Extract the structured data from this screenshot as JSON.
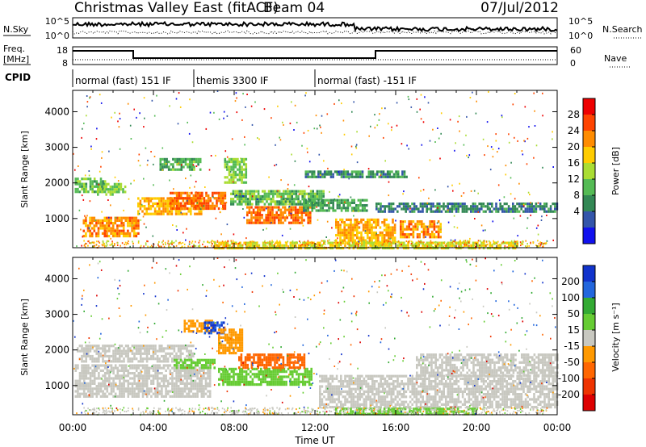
{
  "header": {
    "title": "Christmas Valley East (fitACF)",
    "beam": "Beam 04",
    "date": "07/Jul/2012"
  },
  "top_panels": {
    "nsky_label": "N.Sky",
    "nsearch_label": "N.Search",
    "nsky_ticks": [
      "10^5",
      "10^0"
    ],
    "nsearch_ticks": [
      "10^5",
      "10^0"
    ],
    "freq_label_line1": "Freq.",
    "freq_label_line2": "[MHz]",
    "freq_ticks": [
      "18",
      "8"
    ],
    "nave_label": "Nave",
    "nave_ticks": [
      "60",
      "0"
    ],
    "cpid_label": "CPID"
  },
  "cpid_segments": [
    {
      "label": "normal (fast) 151 IF",
      "start_h": 0,
      "end_h": 6
    },
    {
      "label": "themis 3300 IF",
      "start_h": 6,
      "end_h": 12
    },
    {
      "label": "normal (fast) -151 IF",
      "start_h": 12,
      "end_h": 24
    }
  ],
  "power_colorbar": {
    "title": "Power [dB]",
    "ticks": [
      "28",
      "24",
      "20",
      "16",
      "12",
      "8",
      "4"
    ],
    "colors": [
      "#ee0000",
      "#ff4400",
      "#ff8c00",
      "#ffcc00",
      "#aadd33",
      "#55bb55",
      "#338855",
      "#3355aa",
      "#1111ee"
    ]
  },
  "velocity_colorbar": {
    "title": "Velocity [m s⁻¹]",
    "ticks": [
      "200",
      "100",
      "50",
      "15",
      "-15",
      "-50",
      "-100",
      "-200"
    ],
    "colors": [
      "#1133cc",
      "#2266dd",
      "#33aa33",
      "#66cc33",
      "#c8c8c0",
      "#ff9900",
      "#ff6600",
      "#ee3300",
      "#dd0000"
    ]
  },
  "chart_data": [
    {
      "type": "heatmap",
      "name": "power",
      "ylabel": "Slant Range [km]",
      "xlabel": "",
      "x_ticks": [
        "00:00",
        "04:00",
        "08:00",
        "12:00",
        "16:00",
        "20:00",
        "00:00"
      ],
      "y_ticks": [
        "1000",
        "2000",
        "3000",
        "4000"
      ],
      "xlim": [
        0,
        24
      ],
      "ylim": [
        180,
        4600
      ],
      "unit": "dB",
      "regions": [
        {
          "t0": 0.1,
          "t1": 1.6,
          "r0": 1750,
          "r1": 2150,
          "v": 10
        },
        {
          "t0": 0.5,
          "t1": 3.3,
          "r0": 500,
          "r1": 1050,
          "v": 22
        },
        {
          "t0": 1.2,
          "t1": 2.6,
          "r0": 1700,
          "r1": 2000,
          "v": 12
        },
        {
          "t0": 3.2,
          "t1": 6.5,
          "r0": 1100,
          "r1": 1600,
          "v": 20
        },
        {
          "t0": 4.8,
          "t1": 7.6,
          "r0": 1300,
          "r1": 1750,
          "v": 24
        },
        {
          "t0": 4.3,
          "t1": 6.3,
          "r0": 2400,
          "r1": 2700,
          "v": 9
        },
        {
          "t0": 7.5,
          "t1": 8.6,
          "r0": 2000,
          "r1": 2700,
          "v": 12
        },
        {
          "t0": 7.8,
          "t1": 12.4,
          "r0": 1400,
          "r1": 1800,
          "v": 10
        },
        {
          "t0": 8.6,
          "t1": 11.8,
          "r0": 900,
          "r1": 1350,
          "v": 24
        },
        {
          "t0": 11.4,
          "t1": 14.6,
          "r0": 1200,
          "r1": 1550,
          "v": 8
        },
        {
          "t0": 13.0,
          "t1": 16.0,
          "r0": 300,
          "r1": 1000,
          "v": 20
        },
        {
          "t0": 16.2,
          "t1": 18.2,
          "r0": 450,
          "r1": 950,
          "v": 22
        },
        {
          "t0": 15.0,
          "t1": 24.0,
          "r0": 1200,
          "r1": 1450,
          "v": 5
        },
        {
          "t0": 7.0,
          "t1": 22.0,
          "r0": 200,
          "r1": 350,
          "v": 16
        },
        {
          "t0": 11.5,
          "t1": 16.5,
          "r0": 2150,
          "r1": 2350,
          "v": 6
        }
      ]
    },
    {
      "type": "heatmap",
      "name": "velocity",
      "ylabel": "Slant Range [km]",
      "xlabel": "Time UT",
      "x_ticks": [
        "00:00",
        "04:00",
        "08:00",
        "12:00",
        "16:00",
        "20:00",
        "00:00"
      ],
      "y_ticks": [
        "1000",
        "2000",
        "3000",
        "4000"
      ],
      "xlim": [
        0,
        24
      ],
      "ylim": [
        180,
        4600
      ],
      "unit": "m s-1",
      "regions": [
        {
          "t0": 0.1,
          "t1": 6.8,
          "r0": 700,
          "r1": 1600,
          "v": 0
        },
        {
          "t0": 0.2,
          "t1": 6.0,
          "r0": 1700,
          "r1": 2150,
          "v": 0
        },
        {
          "t0": 5.0,
          "t1": 7.0,
          "r0": 1500,
          "r1": 1750,
          "v": 30
        },
        {
          "t0": 5.5,
          "t1": 7.0,
          "r0": 2550,
          "r1": 2850,
          "v": -30
        },
        {
          "t0": 6.5,
          "t1": 7.5,
          "r0": 2450,
          "r1": 2800,
          "v": 200
        },
        {
          "t0": 7.2,
          "t1": 11.8,
          "r0": 1000,
          "r1": 1500,
          "v": 40
        },
        {
          "t0": 8.2,
          "t1": 11.5,
          "r0": 1500,
          "r1": 1900,
          "v": -60
        },
        {
          "t0": 7.2,
          "t1": 8.4,
          "r0": 1900,
          "r1": 2600,
          "v": -30
        },
        {
          "t0": 12.2,
          "t1": 24.0,
          "r0": 400,
          "r1": 1300,
          "v": 0
        },
        {
          "t0": 13.0,
          "t1": 20.0,
          "r0": 200,
          "r1": 380,
          "v": 30
        },
        {
          "t0": 17.0,
          "t1": 24.0,
          "r0": 1300,
          "r1": 1900,
          "v": 0
        }
      ]
    }
  ]
}
